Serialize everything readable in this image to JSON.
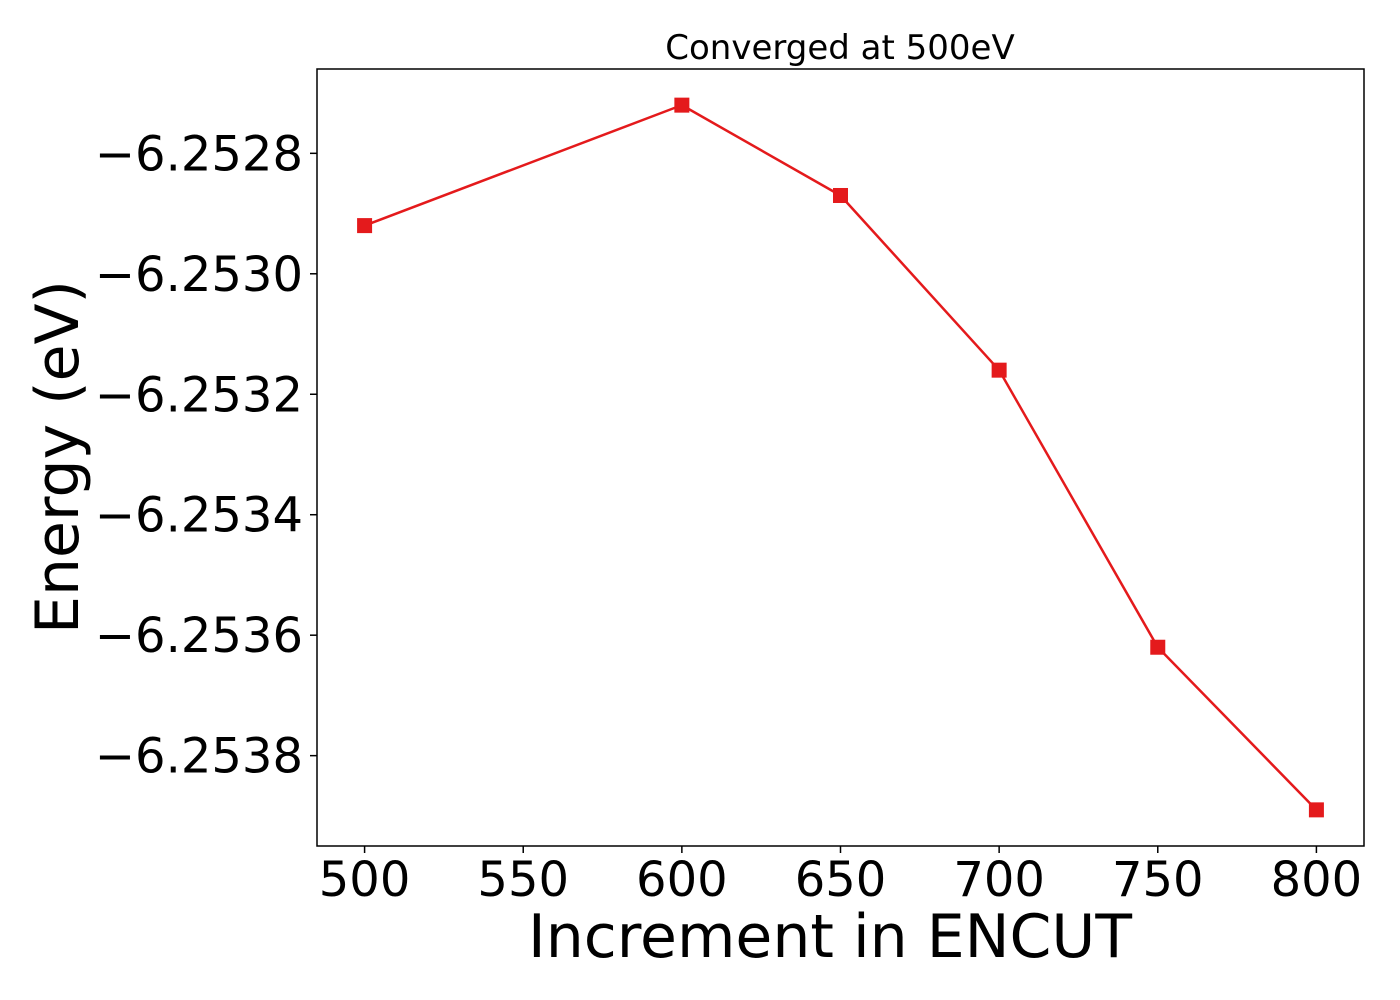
{
  "chart_data": {
    "type": "line",
    "title": "Converged at 500eV",
    "xlabel": "Increment in ENCUT",
    "ylabel": "Energy (eV)",
    "x": [
      500,
      600,
      650,
      700,
      750,
      800
    ],
    "series": [
      {
        "values": [
          -6.25292,
          -6.25272,
          -6.25287,
          -6.25316,
          -6.25362,
          -6.25389
        ],
        "color": "#e41a1c",
        "marker": "square"
      }
    ],
    "xlim": [
      485,
      815
    ],
    "ylim": [
      -6.25395,
      -6.25266
    ],
    "xticks": [
      500,
      550,
      600,
      650,
      700,
      750,
      800
    ],
    "xtick_labels": [
      "500",
      "550",
      "600",
      "650",
      "700",
      "750",
      "800"
    ],
    "yticks": [
      -6.2528,
      -6.253,
      -6.2532,
      -6.2534,
      -6.2536,
      -6.2538
    ],
    "ytick_labels": [
      "−6.2528",
      "−6.2530",
      "−6.2532",
      "−6.2534",
      "−6.2536",
      "−6.2538"
    ],
    "grid": false,
    "legend": "none"
  }
}
